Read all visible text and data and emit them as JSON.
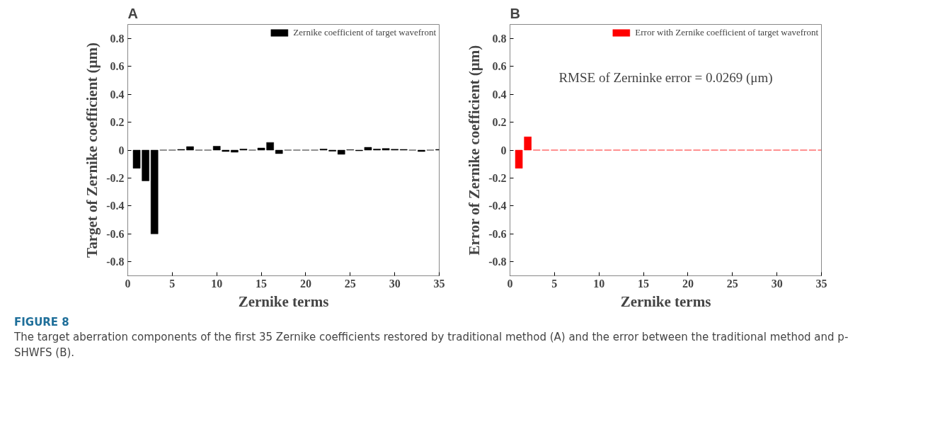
{
  "chart_data": [
    {
      "type": "bar",
      "title": "A",
      "xlabel": "Zernike terms",
      "ylabel": "Target of Zernike coefficient (μm)",
      "x": [
        1,
        2,
        3,
        4,
        5,
        6,
        7,
        8,
        9,
        10,
        11,
        12,
        13,
        14,
        15,
        16,
        17,
        18,
        19,
        20,
        21,
        22,
        23,
        24,
        25,
        26,
        27,
        28,
        29,
        30,
        31,
        32,
        33,
        34,
        35
      ],
      "series": [
        {
          "name": "Zernike coefficient of target wavefront",
          "color": "#000000",
          "values": [
            -0.13,
            -0.22,
            -0.6,
            0,
            0,
            0.005,
            0.025,
            0,
            0,
            0.028,
            -0.01,
            -0.015,
            0.008,
            0,
            0.015,
            0.055,
            -0.025,
            0,
            0,
            0,
            0,
            0.008,
            -0.008,
            -0.03,
            0.003,
            -0.005,
            0.02,
            0.008,
            0.012,
            0.006,
            0.005,
            0,
            -0.01,
            0,
            0.005
          ]
        }
      ],
      "xlim": [
        0,
        35
      ],
      "xticks": [
        0,
        5,
        10,
        15,
        20,
        25,
        30,
        35
      ],
      "ylim": [
        -0.9,
        0.9
      ],
      "yticks": [
        -0.8,
        -0.6,
        -0.4,
        -0.2,
        0,
        0.2,
        0.4,
        0.6,
        0.8
      ],
      "legend": "top right",
      "grid": false,
      "annotations": [
        "FIGURE 8",
        "The target aberration components of the first 35 Zernike coefficients restored by traditional method (A) and the error between the traditional method and p-SHWFS (B)."
      ]
    },
    {
      "type": "bar",
      "title": "B",
      "xlabel": "Zernike terms",
      "ylabel": "Error of Zernike coefficient (μm)",
      "x": [
        1,
        2,
        3,
        4,
        5,
        6,
        7,
        8,
        9,
        10,
        11,
        12,
        13,
        14,
        15,
        16,
        17,
        18,
        19,
        20,
        21,
        22,
        23,
        24,
        25,
        26,
        27,
        28,
        29,
        30,
        31,
        32,
        33,
        34,
        35
      ],
      "series": [
        {
          "name": "Error with Zernike coefficient of target wavefront",
          "color": "#ff0000",
          "values": [
            -0.13,
            0.095,
            0,
            0,
            0,
            0,
            0,
            0,
            0,
            0,
            0,
            0,
            0,
            0,
            0,
            0,
            0,
            0,
            0,
            0,
            0,
            0,
            0,
            0,
            0,
            0,
            0,
            0,
            0,
            0,
            0,
            0,
            0,
            0,
            0
          ]
        }
      ],
      "xlim": [
        0,
        35
      ],
      "xticks": [
        0,
        5,
        10,
        15,
        20,
        25,
        30,
        35
      ],
      "ylim": [
        -0.9,
        0.9
      ],
      "yticks": [
        -0.8,
        -0.6,
        -0.4,
        -0.2,
        0,
        0.2,
        0.4,
        0.6,
        0.8
      ],
      "legend": "top right",
      "grid": false,
      "annotations": [
        "RMSE of Zerninke error = 0.0269 (μm)"
      ]
    }
  ]
}
